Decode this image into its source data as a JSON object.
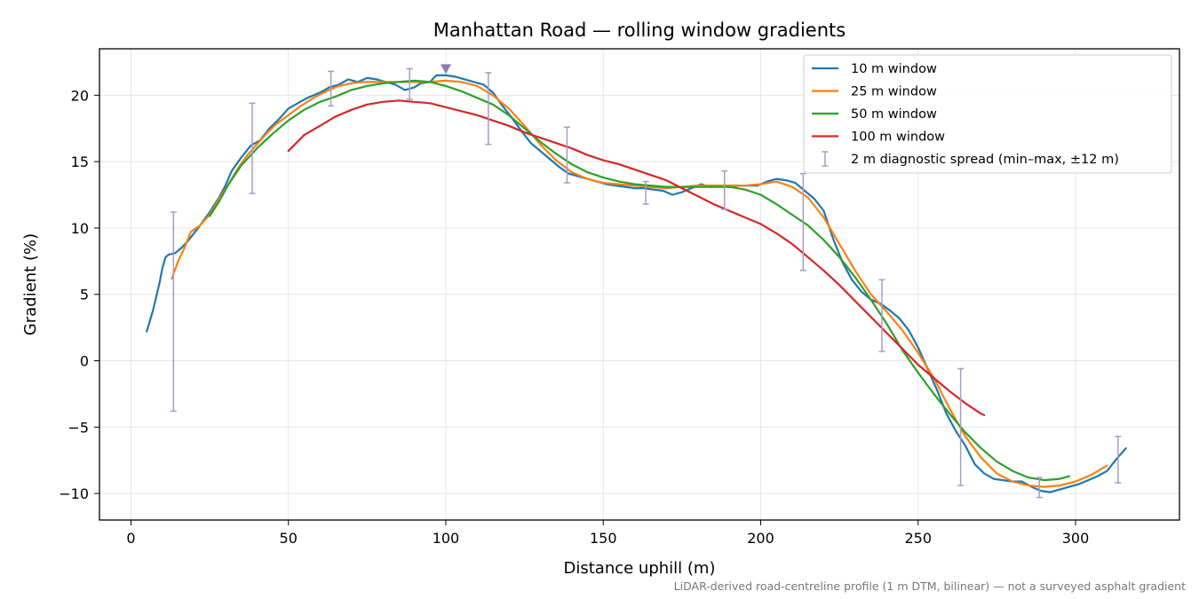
{
  "chart_data": {
    "type": "line",
    "title": "Manhattan Road — rolling window gradients",
    "xlabel": "Distance uphill (m)",
    "ylabel": "Gradient (%)",
    "xlim": [
      -10,
      333
    ],
    "ylim": [
      -12,
      23.5
    ],
    "xticks": [
      0,
      50,
      100,
      150,
      200,
      250,
      300
    ],
    "yticks": [
      -10,
      -5,
      0,
      5,
      10,
      15,
      20
    ],
    "xtick_labels": [
      "0",
      "50",
      "100",
      "150",
      "200",
      "250",
      "300"
    ],
    "ytick_labels": [
      "−10",
      "−5",
      "0",
      "5",
      "10",
      "15",
      "20"
    ],
    "grid": true,
    "legend_position": "top-right",
    "footnote": "LiDAR-derived road-centreline profile (1 m DTM, bilinear) — not a surveyed asphalt gradient",
    "peak_marker": {
      "x": 100,
      "y": 22.0,
      "color": "#8c7ab0"
    },
    "series": [
      {
        "name": "10 m window",
        "color": "#1f77b4",
        "points": [
          [
            5,
            2.2
          ],
          [
            7,
            3.8
          ],
          [
            9,
            5.8
          ],
          [
            10,
            7.0
          ],
          [
            11,
            7.8
          ],
          [
            12,
            8.0
          ],
          [
            14,
            8.1
          ],
          [
            16,
            8.5
          ],
          [
            18,
            9.0
          ],
          [
            20,
            9.6
          ],
          [
            22,
            10.2
          ],
          [
            25,
            11.2
          ],
          [
            28,
            12.3
          ],
          [
            30,
            13.2
          ],
          [
            32,
            14.3
          ],
          [
            35,
            15.3
          ],
          [
            38,
            16.2
          ],
          [
            41,
            16.6
          ],
          [
            44,
            17.5
          ],
          [
            47,
            18.2
          ],
          [
            50,
            19.0
          ],
          [
            53,
            19.4
          ],
          [
            56,
            19.8
          ],
          [
            60,
            20.2
          ],
          [
            63,
            20.6
          ],
          [
            66,
            20.8
          ],
          [
            69,
            21.2
          ],
          [
            72,
            21.0
          ],
          [
            75,
            21.3
          ],
          [
            78,
            21.2
          ],
          [
            81,
            21.0
          ],
          [
            84,
            20.8
          ],
          [
            87,
            20.4
          ],
          [
            90,
            20.6
          ],
          [
            92,
            20.9
          ],
          [
            95,
            21.0
          ],
          [
            97,
            21.5
          ],
          [
            100,
            21.5
          ],
          [
            103,
            21.4
          ],
          [
            106,
            21.2
          ],
          [
            109,
            21.0
          ],
          [
            112,
            20.8
          ],
          [
            115,
            20.2
          ],
          [
            118,
            19.2
          ],
          [
            121,
            18.3
          ],
          [
            124,
            17.3
          ],
          [
            127,
            16.4
          ],
          [
            130,
            15.8
          ],
          [
            133,
            15.2
          ],
          [
            136,
            14.6
          ],
          [
            139,
            14.1
          ],
          [
            142,
            13.9
          ],
          [
            145,
            13.7
          ],
          [
            148,
            13.5
          ],
          [
            151,
            13.3
          ],
          [
            154,
            13.2
          ],
          [
            157,
            13.1
          ],
          [
            160,
            13.0
          ],
          [
            163,
            13.0
          ],
          [
            166,
            12.9
          ],
          [
            169,
            12.8
          ],
          [
            172,
            12.5
          ],
          [
            175,
            12.7
          ],
          [
            178,
            13.0
          ],
          [
            181,
            13.3
          ],
          [
            184,
            13.1
          ],
          [
            187,
            13.2
          ],
          [
            190,
            13.1
          ],
          [
            193,
            13.2
          ],
          [
            196,
            13.2
          ],
          [
            199,
            13.2
          ],
          [
            202,
            13.5
          ],
          [
            205,
            13.7
          ],
          [
            208,
            13.6
          ],
          [
            211,
            13.4
          ],
          [
            214,
            12.8
          ],
          [
            217,
            12.2
          ],
          [
            220,
            11.3
          ],
          [
            223,
            9.2
          ],
          [
            226,
            7.4
          ],
          [
            229,
            6.1
          ],
          [
            232,
            5.2
          ],
          [
            235,
            4.6
          ],
          [
            238,
            4.3
          ],
          [
            241,
            3.8
          ],
          [
            244,
            3.2
          ],
          [
            247,
            2.3
          ],
          [
            250,
            1.0
          ],
          [
            253,
            -0.6
          ],
          [
            256,
            -2.2
          ],
          [
            259,
            -4.0
          ],
          [
            262,
            -5.3
          ],
          [
            265,
            -6.4
          ],
          [
            268,
            -7.8
          ],
          [
            271,
            -8.5
          ],
          [
            274,
            -8.9
          ],
          [
            277,
            -9.0
          ],
          [
            280,
            -9.1
          ],
          [
            283,
            -9.1
          ],
          [
            286,
            -9.5
          ],
          [
            289,
            -9.8
          ],
          [
            292,
            -9.9
          ],
          [
            295,
            -9.7
          ],
          [
            298,
            -9.5
          ],
          [
            301,
            -9.3
          ],
          [
            304,
            -9.0
          ],
          [
            307,
            -8.7
          ],
          [
            310,
            -8.3
          ],
          [
            313,
            -7.4
          ],
          [
            316,
            -6.6
          ]
        ]
      },
      {
        "name": "25 m window",
        "color": "#ff7f0e",
        "points": [
          [
            13,
            6.2
          ],
          [
            15,
            7.5
          ],
          [
            17,
            8.5
          ],
          [
            19,
            9.7
          ],
          [
            22,
            10.2
          ],
          [
            25,
            11.0
          ],
          [
            28,
            12.2
          ],
          [
            31,
            13.3
          ],
          [
            34,
            14.5
          ],
          [
            37,
            15.5
          ],
          [
            40,
            16.3
          ],
          [
            43,
            17.1
          ],
          [
            46,
            17.8
          ],
          [
            50,
            18.5
          ],
          [
            54,
            19.2
          ],
          [
            58,
            19.8
          ],
          [
            62,
            20.3
          ],
          [
            66,
            20.7
          ],
          [
            70,
            20.9
          ],
          [
            74,
            21.0
          ],
          [
            78,
            21.0
          ],
          [
            82,
            21.0
          ],
          [
            86,
            21.0
          ],
          [
            90,
            21.0
          ],
          [
            95,
            21.0
          ],
          [
            100,
            21.1
          ],
          [
            105,
            21.0
          ],
          [
            110,
            20.7
          ],
          [
            115,
            20.0
          ],
          [
            120,
            19.0
          ],
          [
            125,
            17.7
          ],
          [
            130,
            16.3
          ],
          [
            135,
            15.1
          ],
          [
            140,
            14.2
          ],
          [
            145,
            13.7
          ],
          [
            150,
            13.4
          ],
          [
            155,
            13.3
          ],
          [
            160,
            13.2
          ],
          [
            165,
            13.1
          ],
          [
            170,
            13.0
          ],
          [
            175,
            13.1
          ],
          [
            180,
            13.2
          ],
          [
            185,
            13.2
          ],
          [
            190,
            13.2
          ],
          [
            195,
            13.2
          ],
          [
            200,
            13.3
          ],
          [
            205,
            13.5
          ],
          [
            210,
            13.1
          ],
          [
            215,
            12.3
          ],
          [
            220,
            10.8
          ],
          [
            225,
            8.8
          ],
          [
            230,
            6.8
          ],
          [
            235,
            5.0
          ],
          [
            240,
            3.7
          ],
          [
            245,
            2.3
          ],
          [
            250,
            0.6
          ],
          [
            255,
            -1.3
          ],
          [
            260,
            -3.6
          ],
          [
            265,
            -5.7
          ],
          [
            270,
            -7.3
          ],
          [
            275,
            -8.5
          ],
          [
            280,
            -9.1
          ],
          [
            285,
            -9.4
          ],
          [
            290,
            -9.5
          ],
          [
            295,
            -9.4
          ],
          [
            300,
            -9.1
          ],
          [
            305,
            -8.6
          ],
          [
            310,
            -7.9
          ]
        ]
      },
      {
        "name": "50 m window",
        "color": "#2ca02c",
        "points": [
          [
            25,
            10.9
          ],
          [
            28,
            12.0
          ],
          [
            31,
            13.3
          ],
          [
            35,
            14.7
          ],
          [
            40,
            16.0
          ],
          [
            45,
            17.1
          ],
          [
            50,
            18.1
          ],
          [
            55,
            18.9
          ],
          [
            60,
            19.5
          ],
          [
            65,
            19.9
          ],
          [
            70,
            20.4
          ],
          [
            75,
            20.7
          ],
          [
            80,
            20.9
          ],
          [
            85,
            21.0
          ],
          [
            90,
            21.1
          ],
          [
            95,
            21.0
          ],
          [
            100,
            20.7
          ],
          [
            105,
            20.3
          ],
          [
            110,
            19.8
          ],
          [
            115,
            19.3
          ],
          [
            120,
            18.5
          ],
          [
            125,
            17.5
          ],
          [
            130,
            16.5
          ],
          [
            135,
            15.6
          ],
          [
            140,
            14.8
          ],
          [
            145,
            14.2
          ],
          [
            150,
            13.8
          ],
          [
            155,
            13.5
          ],
          [
            160,
            13.3
          ],
          [
            165,
            13.2
          ],
          [
            170,
            13.1
          ],
          [
            175,
            13.1
          ],
          [
            180,
            13.1
          ],
          [
            185,
            13.1
          ],
          [
            190,
            13.1
          ],
          [
            195,
            12.9
          ],
          [
            200,
            12.5
          ],
          [
            205,
            11.8
          ],
          [
            210,
            11.0
          ],
          [
            215,
            10.2
          ],
          [
            220,
            9.1
          ],
          [
            225,
            7.8
          ],
          [
            230,
            6.3
          ],
          [
            235,
            4.6
          ],
          [
            240,
            2.8
          ],
          [
            245,
            0.8
          ],
          [
            250,
            -0.9
          ],
          [
            255,
            -2.5
          ],
          [
            260,
            -4.0
          ],
          [
            265,
            -5.4
          ],
          [
            270,
            -6.6
          ],
          [
            275,
            -7.6
          ],
          [
            280,
            -8.3
          ],
          [
            285,
            -8.8
          ],
          [
            290,
            -9.0
          ],
          [
            295,
            -8.9
          ],
          [
            298,
            -8.7
          ]
        ]
      },
      {
        "name": "100 m window",
        "color": "#d62728",
        "points": [
          [
            50,
            15.8
          ],
          [
            55,
            17.0
          ],
          [
            60,
            17.7
          ],
          [
            65,
            18.4
          ],
          [
            70,
            18.9
          ],
          [
            75,
            19.3
          ],
          [
            80,
            19.5
          ],
          [
            85,
            19.6
          ],
          [
            90,
            19.5
          ],
          [
            95,
            19.4
          ],
          [
            100,
            19.1
          ],
          [
            105,
            18.8
          ],
          [
            110,
            18.5
          ],
          [
            115,
            18.1
          ],
          [
            120,
            17.7
          ],
          [
            125,
            17.2
          ],
          [
            130,
            16.8
          ],
          [
            135,
            16.4
          ],
          [
            140,
            16.0
          ],
          [
            145,
            15.5
          ],
          [
            150,
            15.1
          ],
          [
            155,
            14.8
          ],
          [
            160,
            14.4
          ],
          [
            165,
            14.0
          ],
          [
            170,
            13.6
          ],
          [
            175,
            13.0
          ],
          [
            180,
            12.4
          ],
          [
            185,
            11.8
          ],
          [
            190,
            11.3
          ],
          [
            195,
            10.8
          ],
          [
            200,
            10.3
          ],
          [
            205,
            9.6
          ],
          [
            210,
            8.8
          ],
          [
            215,
            7.8
          ],
          [
            220,
            6.8
          ],
          [
            225,
            5.7
          ],
          [
            230,
            4.5
          ],
          [
            235,
            3.3
          ],
          [
            240,
            2.1
          ],
          [
            245,
            0.9
          ],
          [
            250,
            -0.3
          ],
          [
            255,
            -1.3
          ],
          [
            260,
            -2.3
          ],
          [
            265,
            -3.2
          ],
          [
            270,
            -4.0
          ],
          [
            271,
            -4.1
          ]
        ]
      }
    ],
    "errorbars": {
      "name": "2 m diagnostic spread (min–max, ±12 m)",
      "color": "#a59cc4",
      "bars": [
        {
          "x": 13.5,
          "low": -3.8,
          "high": 11.2
        },
        {
          "x": 38.5,
          "low": 12.6,
          "high": 19.4
        },
        {
          "x": 63.5,
          "low": 19.2,
          "high": 21.8
        },
        {
          "x": 88.5,
          "low": 19.7,
          "high": 22.0
        },
        {
          "x": 113.5,
          "low": 16.3,
          "high": 21.7
        },
        {
          "x": 138.5,
          "low": 13.4,
          "high": 17.6
        },
        {
          "x": 163.5,
          "low": 11.8,
          "high": 13.5
        },
        {
          "x": 188.5,
          "low": 11.4,
          "high": 14.3
        },
        {
          "x": 213.5,
          "low": 6.8,
          "high": 14.1
        },
        {
          "x": 238.5,
          "low": 0.7,
          "high": 6.1
        },
        {
          "x": 263.5,
          "low": -9.4,
          "high": -0.6
        },
        {
          "x": 288.5,
          "low": -10.3,
          "high": -8.8
        },
        {
          "x": 313.5,
          "low": -9.2,
          "high": -5.7
        }
      ]
    }
  }
}
